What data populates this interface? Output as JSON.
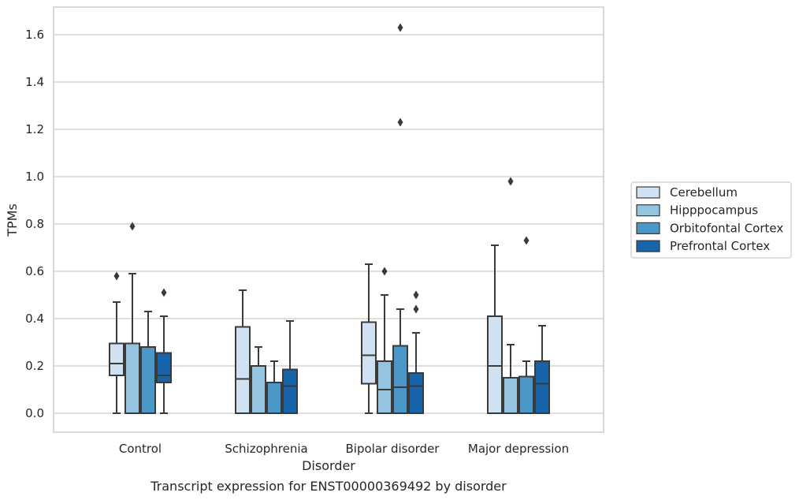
{
  "caption": "Transcript expression for ENST00000369492 by disorder",
  "chart_data": {
    "type": "boxplot",
    "title": "",
    "xlabel": "Disorder",
    "ylabel": "TPMs",
    "categories": [
      "Control",
      "Schizophrenia",
      "Bipolar disorder",
      "Major depression"
    ],
    "ylim": [
      -0.08,
      1.71
    ],
    "yticks": [
      0.0,
      0.2,
      0.4,
      0.6,
      0.8,
      1.0,
      1.2,
      1.4,
      1.6
    ],
    "ytick_labels": [
      "0.0",
      "0.2",
      "0.4",
      "0.6",
      "0.8",
      "1.0",
      "1.2",
      "1.4",
      "1.6"
    ],
    "grid": true,
    "legend": {
      "position": "right"
    },
    "series": [
      {
        "name": "Cerebellum",
        "color": "#d0e1f2",
        "boxes": [
          {
            "whislo": 0.0,
            "q1": 0.16,
            "med": 0.21,
            "q3": 0.295,
            "whishi": 0.47,
            "fliers": [
              0.58
            ]
          },
          {
            "whislo": 0.0,
            "q1": 0.0,
            "med": 0.145,
            "q3": 0.365,
            "whishi": 0.52,
            "fliers": []
          },
          {
            "whislo": 0.0,
            "q1": 0.125,
            "med": 0.245,
            "q3": 0.385,
            "whishi": 0.63,
            "fliers": []
          },
          {
            "whislo": 0.0,
            "q1": 0.0,
            "med": 0.2,
            "q3": 0.41,
            "whishi": 0.71,
            "fliers": []
          }
        ]
      },
      {
        "name": "Hipppocampus",
        "color": "#94c4df",
        "boxes": [
          {
            "whislo": 0.0,
            "q1": 0.0,
            "med": 0.295,
            "q3": 0.295,
            "whishi": 0.59,
            "fliers": [
              0.79
            ]
          },
          {
            "whislo": 0.0,
            "q1": 0.0,
            "med": 0.0,
            "q3": 0.2,
            "whishi": 0.28,
            "fliers": []
          },
          {
            "whislo": 0.0,
            "q1": 0.0,
            "med": 0.1,
            "q3": 0.22,
            "whishi": 0.5,
            "fliers": [
              0.6
            ]
          },
          {
            "whislo": 0.0,
            "q1": 0.0,
            "med": 0.15,
            "q3": 0.15,
            "whishi": 0.29,
            "fliers": [
              0.98
            ]
          }
        ]
      },
      {
        "name": "Orbitofontal Cortex",
        "color": "#4a98c9",
        "boxes": [
          {
            "whislo": 0.0,
            "q1": 0.0,
            "med": 0.28,
            "q3": 0.28,
            "whishi": 0.43,
            "fliers": []
          },
          {
            "whislo": 0.0,
            "q1": 0.0,
            "med": 0.13,
            "q3": 0.13,
            "whishi": 0.22,
            "fliers": []
          },
          {
            "whislo": 0.0,
            "q1": 0.0,
            "med": 0.11,
            "q3": 0.285,
            "whishi": 0.44,
            "fliers": [
              1.63,
              1.23
            ]
          },
          {
            "whislo": 0.0,
            "q1": 0.0,
            "med": 0.155,
            "q3": 0.155,
            "whishi": 0.22,
            "fliers": [
              0.73
            ]
          }
        ]
      },
      {
        "name": "Prefrontal Cortex",
        "color": "#1764ab",
        "boxes": [
          {
            "whislo": 0.0,
            "q1": 0.13,
            "med": 0.16,
            "q3": 0.255,
            "whishi": 0.41,
            "fliers": [
              0.51
            ]
          },
          {
            "whislo": 0.0,
            "q1": 0.0,
            "med": 0.115,
            "q3": 0.185,
            "whishi": 0.39,
            "fliers": []
          },
          {
            "whislo": 0.0,
            "q1": 0.0,
            "med": 0.115,
            "q3": 0.17,
            "whishi": 0.34,
            "fliers": [
              0.5,
              0.44
            ]
          },
          {
            "whislo": 0.0,
            "q1": 0.0,
            "med": 0.125,
            "q3": 0.22,
            "whishi": 0.37,
            "fliers": []
          }
        ]
      }
    ]
  }
}
